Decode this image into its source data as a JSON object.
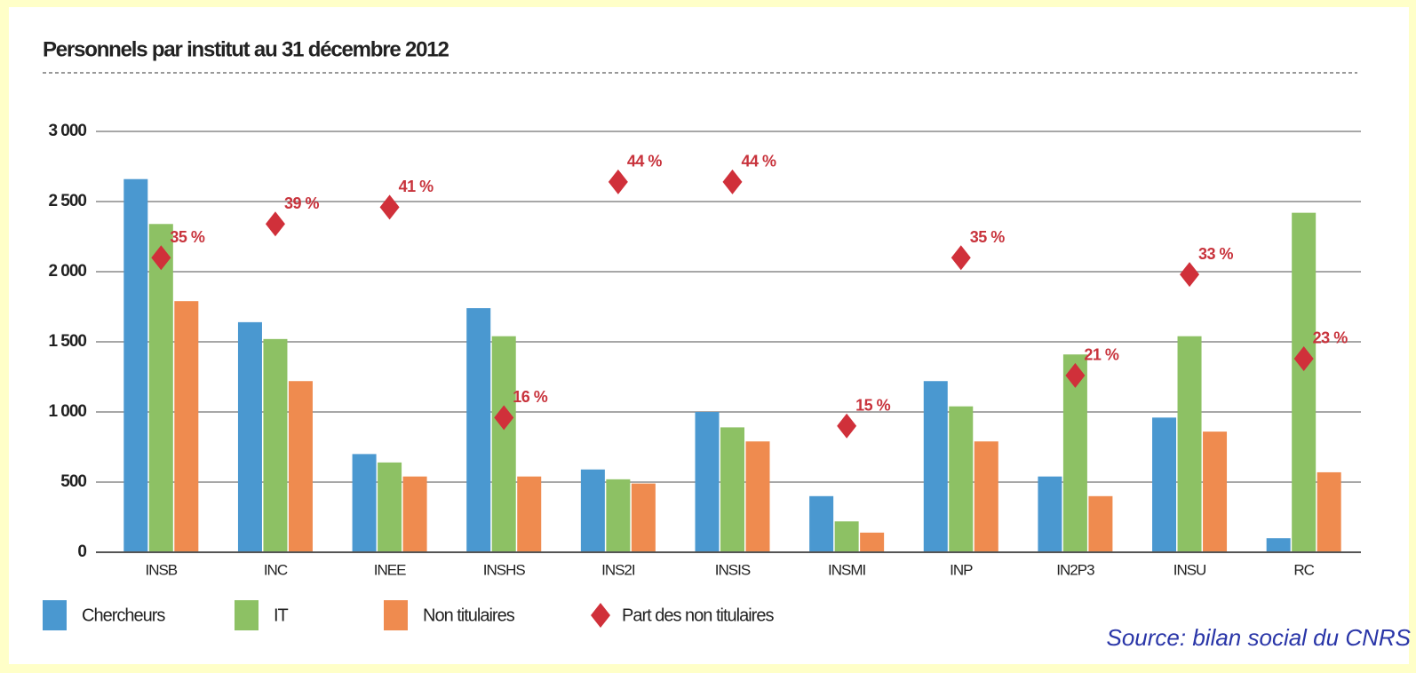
{
  "chart_data": {
    "type": "bar",
    "title": "Personnels par institut au 31 décembre 2012",
    "source": "Source: bilan social du CNRS",
    "categories": [
      "INSB",
      "INC",
      "INEE",
      "INSHS",
      "INS2I",
      "INSIS",
      "INSMI",
      "INP",
      "IN2P3",
      "INSU",
      "RC"
    ],
    "series": [
      {
        "name": "Chercheurs",
        "color": "#4a98d0",
        "values": [
          2660,
          1640,
          700,
          1740,
          590,
          1000,
          400,
          1220,
          540,
          960,
          100
        ]
      },
      {
        "name": "IT",
        "color": "#8dc164",
        "values": [
          2340,
          1520,
          640,
          1540,
          520,
          890,
          220,
          1040,
          1410,
          1540,
          2420
        ]
      },
      {
        "name": "Non titulaires",
        "color": "#ef8b4f",
        "values": [
          1790,
          1220,
          540,
          540,
          490,
          790,
          140,
          790,
          400,
          860,
          570
        ]
      },
      {
        "name": "Part des non titulaires",
        "color": "#d0303a",
        "type": "scatter",
        "marker": "diamond",
        "axis": "y2",
        "values": [
          35,
          39,
          41,
          16,
          44,
          44,
          15,
          35,
          21,
          33,
          23
        ],
        "value_labels": [
          "35 %",
          "39 %",
          "41 %",
          "16 %",
          "44 %",
          "44 %",
          "15 %",
          "35 %",
          "21 %",
          "33 %",
          "23 %"
        ]
      }
    ],
    "ylim": [
      0,
      3000
    ],
    "yticks": [
      0,
      500,
      {
        "value": 1000,
        "label": "1 000"
      },
      {
        "value": 1500,
        "label": "1 500"
      },
      {
        "value": 2000,
        "label": "2 000"
      },
      {
        "value": 2500,
        "label": "2 500"
      },
      {
        "value": 3000,
        "label": "3 000"
      }
    ],
    "y2lim": [
      0,
      50
    ],
    "grid": true,
    "legend": "bottom"
  }
}
